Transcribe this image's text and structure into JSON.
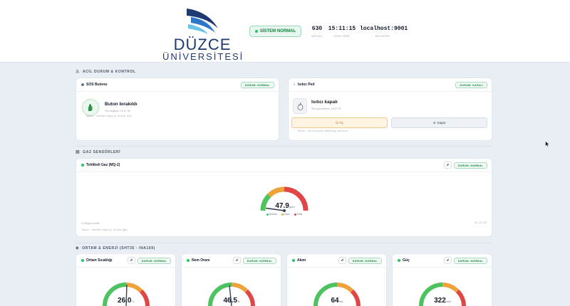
{
  "header": {
    "logo_line1": "DÜZCE",
    "logo_line2": "ÜNİVERSİTESİ",
    "system_status": "SİSTEM NORMAL",
    "stats": [
      {
        "value": "630",
        "label": "MESAJ"
      },
      {
        "value": "15:11:15",
        "label": "SON VERİ"
      },
      {
        "value": "localhost:9001",
        "label": "BROKER"
      }
    ]
  },
  "sections": {
    "acil": "ACİL DURUM & KONTROL",
    "gaz": "GAZ SENSÖRLERİ",
    "ortam": "ORTAM & ENERJİ (SHT35 · INA169)"
  },
  "sos": {
    "title": "SOS Butonu",
    "badge": "DURUM: NORMAL",
    "state": "Buton bırakıldı",
    "last_change": "Son değişim: 15:07:39",
    "topic": "Topic: sensor/sayiji alive sos"
  },
  "heater": {
    "title": "Isıtıcı Ped",
    "badge": "DURUM: KAPALI",
    "state": "Isıtıcı kapalı",
    "last_change": "Son güncelleme: 15:07:27",
    "on_label": "Aç",
    "off_label": "Kapat",
    "topic": "Topic: ev/isitici/heating control"
  },
  "gas": {
    "title": "Tehlikeli Gaz (MQ-2)",
    "badge": "DURUM: NORMAL",
    "value": "47.9",
    "unit": "ppm",
    "value_num": 47.9,
    "max": 100,
    "range_text": "0-100ppm scale",
    "topic": "Topic: sensor/sayiji alive/gaz",
    "time": "15:11:15",
    "legend": [
      "Normal",
      "Uyarı",
      "Kritik"
    ]
  },
  "env": [
    {
      "title": "Ortam Sıcaklığı",
      "badge": "DURUM: NORMAL",
      "value": "26.0",
      "unit": "°C",
      "level": 0.55
    },
    {
      "title": "Nem Oranı",
      "badge": "DURUM: NORMAL",
      "value": "46.5",
      "unit": "%",
      "level": 0.465
    },
    {
      "title": "Akım",
      "badge": "DURUM: NORMAL",
      "value": "64",
      "unit": "mA",
      "level": 0.2
    },
    {
      "title": "Güç",
      "badge": "DURUM: NORMAL",
      "value": "322",
      "unit": "mW",
      "level": 0.2
    }
  ],
  "colors": {
    "green": "#4cc35f",
    "amber": "#f0a23a",
    "red": "#e04646",
    "navy": "#1d3a73",
    "badge_green": "#16803c"
  }
}
